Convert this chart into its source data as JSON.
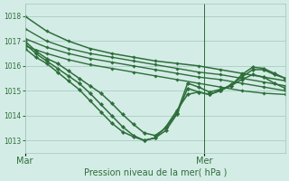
{
  "background_color": "#d4ece6",
  "grid_color": "#a0c8bc",
  "line_color": "#2d6e3a",
  "xlabel": "Pression niveau de la mer( hPa )",
  "ylim": [
    1012.5,
    1018.5
  ],
  "yticks": [
    1013,
    1014,
    1015,
    1016,
    1017,
    1018
  ],
  "xtick_labels": [
    "Mar",
    "Mer"
  ],
  "xtick_positions": [
    0,
    66
  ],
  "vline_x": 66,
  "xlim": [
    0,
    96
  ],
  "series": [
    {
      "x": [
        0,
        8,
        16,
        24,
        32,
        40,
        48,
        56,
        64,
        72,
        80,
        88,
        96
      ],
      "y": [
        1018.0,
        1017.4,
        1017.0,
        1016.7,
        1016.5,
        1016.35,
        1016.2,
        1016.1,
        1016.0,
        1015.85,
        1015.7,
        1015.55,
        1015.4
      ],
      "marker": "D",
      "markersize": 1.8,
      "linewidth": 1.1
    },
    {
      "x": [
        0,
        8,
        16,
        24,
        32,
        40,
        48,
        56,
        64,
        72,
        80,
        88,
        96
      ],
      "y": [
        1017.5,
        1017.0,
        1016.7,
        1016.5,
        1016.35,
        1016.2,
        1016.05,
        1015.9,
        1015.75,
        1015.65,
        1015.5,
        1015.35,
        1015.2
      ],
      "marker": "D",
      "markersize": 1.8,
      "linewidth": 1.0
    },
    {
      "x": [
        0,
        8,
        16,
        24,
        32,
        40,
        48,
        56,
        64,
        72,
        80,
        88,
        96
      ],
      "y": [
        1017.1,
        1016.75,
        1016.5,
        1016.3,
        1016.15,
        1016.0,
        1015.85,
        1015.7,
        1015.55,
        1015.45,
        1015.3,
        1015.15,
        1015.0
      ],
      "marker": "D",
      "markersize": 1.8,
      "linewidth": 1.0
    },
    {
      "x": [
        0,
        8,
        16,
        24,
        32,
        40,
        48,
        56,
        64,
        72,
        80,
        88,
        96
      ],
      "y": [
        1016.8,
        1016.5,
        1016.25,
        1016.05,
        1015.9,
        1015.75,
        1015.6,
        1015.45,
        1015.3,
        1015.15,
        1015.0,
        1014.9,
        1014.85
      ],
      "marker": "D",
      "markersize": 1.8,
      "linewidth": 1.0
    },
    {
      "x": [
        0,
        4,
        8,
        12,
        16,
        20,
        24,
        28,
        32,
        36,
        40,
        44,
        48,
        52,
        56,
        60,
        64,
        68,
        72,
        76,
        80,
        84,
        88,
        92,
        96
      ],
      "y": [
        1017.0,
        1016.6,
        1016.3,
        1016.1,
        1015.8,
        1015.5,
        1015.2,
        1014.9,
        1014.5,
        1014.05,
        1013.65,
        1013.3,
        1013.2,
        1013.5,
        1014.1,
        1015.3,
        1015.15,
        1014.95,
        1015.05,
        1015.2,
        1015.65,
        1015.95,
        1015.9,
        1015.7,
        1015.5
      ],
      "marker": "D",
      "markersize": 2.2,
      "linewidth": 1.1
    },
    {
      "x": [
        0,
        4,
        8,
        12,
        16,
        20,
        24,
        28,
        32,
        36,
        40,
        44,
        48,
        52,
        56,
        60,
        64,
        68,
        72,
        76,
        80,
        84,
        88,
        92,
        96
      ],
      "y": [
        1016.9,
        1016.5,
        1016.2,
        1015.9,
        1015.6,
        1015.3,
        1014.9,
        1014.45,
        1014.0,
        1013.55,
        1013.2,
        1013.0,
        1013.1,
        1013.4,
        1014.05,
        1015.1,
        1014.95,
        1014.85,
        1015.0,
        1015.25,
        1015.55,
        1015.85,
        1015.85,
        1015.65,
        1015.5
      ],
      "marker": "D",
      "markersize": 2.2,
      "linewidth": 1.1
    },
    {
      "x": [
        0,
        4,
        8,
        12,
        16,
        20,
        24,
        28,
        32,
        36,
        40,
        44,
        48,
        52,
        56,
        60,
        64,
        68,
        72,
        76,
        80,
        84,
        88,
        92,
        96
      ],
      "y": [
        1016.7,
        1016.35,
        1016.1,
        1015.75,
        1015.4,
        1015.05,
        1014.6,
        1014.15,
        1013.7,
        1013.35,
        1013.15,
        1013.0,
        1013.1,
        1013.55,
        1014.2,
        1014.85,
        1014.95,
        1014.85,
        1015.0,
        1015.2,
        1015.45,
        1015.65,
        1015.55,
        1015.3,
        1015.1
      ],
      "marker": "D",
      "markersize": 2.2,
      "linewidth": 1.1
    }
  ]
}
